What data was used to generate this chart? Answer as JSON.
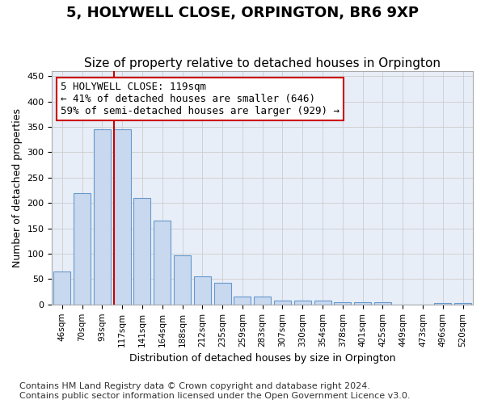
{
  "title": "5, HOLYWELL CLOSE, ORPINGTON, BR6 9XP",
  "subtitle": "Size of property relative to detached houses in Orpington",
  "xlabel": "Distribution of detached houses by size in Orpington",
  "ylabel": "Number of detached properties",
  "bar_labels": [
    "46sqm",
    "70sqm",
    "93sqm",
    "117sqm",
    "141sqm",
    "164sqm",
    "188sqm",
    "212sqm",
    "235sqm",
    "259sqm",
    "283sqm",
    "307sqm",
    "330sqm",
    "354sqm",
    "378sqm",
    "401sqm",
    "425sqm",
    "449sqm",
    "473sqm",
    "496sqm",
    "520sqm"
  ],
  "bar_heights": [
    65,
    220,
    345,
    345,
    210,
    165,
    97,
    56,
    43,
    15,
    15,
    8,
    7,
    8,
    5,
    4,
    5,
    0,
    0,
    3,
    3
  ],
  "bar_color": "#c8d8ee",
  "bar_edge_color": "#6699cc",
  "vline_x_idx": 3,
  "vline_color": "#cc0000",
  "annotation_text": "5 HOLYWELL CLOSE: 119sqm\n← 41% of detached houses are smaller (646)\n59% of semi-detached houses are larger (929) →",
  "annotation_box_color": "#cc0000",
  "ylim": [
    0,
    460
  ],
  "yticks": [
    0,
    50,
    100,
    150,
    200,
    250,
    300,
    350,
    400,
    450
  ],
  "grid_color": "#cccccc",
  "background_color": "#e8eef8",
  "footer_line1": "Contains HM Land Registry data © Crown copyright and database right 2024.",
  "footer_line2": "Contains public sector information licensed under the Open Government Licence v3.0.",
  "title_fontsize": 13,
  "subtitle_fontsize": 11,
  "annotation_fontsize": 9,
  "footer_fontsize": 8
}
